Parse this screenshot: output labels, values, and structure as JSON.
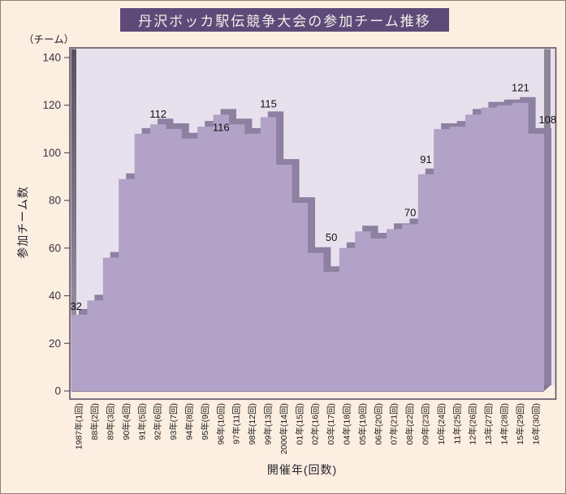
{
  "header": {
    "title": "丹沢ボッカ駅伝競争大会の参加チーム推移"
  },
  "colors": {
    "page_background": "#fceee1",
    "title_background": "#5e4a79",
    "title_text": "#f3efe7",
    "plot_wall": "#e7e1ee",
    "area_front": "#b2a2c7",
    "area_depth": "#8d80a0",
    "side_wall": "#7f7689",
    "frame_border": "#5b5365",
    "axis_text": "#3a3542",
    "label_text": "#111111"
  },
  "chart_data": {
    "type": "area",
    "style": "3d-step-area",
    "title": "丹沢ボッカ駅伝競争大会の参加チーム推移",
    "unit_label": "（チーム）",
    "xlabel": "開催年(回数)",
    "ylabel": "参加チーム数",
    "ylim": [
      0,
      140
    ],
    "y_ticks": [
      0,
      20,
      40,
      60,
      80,
      100,
      120,
      140
    ],
    "grid": false,
    "legend": false,
    "categories": [
      "1987年(1回)",
      "88年(2回)",
      "89年(3回)",
      "90年(4回)",
      "91年(5回)",
      "92年(6回)",
      "93年(7回)",
      "94年(8回)",
      "95年(9回)",
      "96年(10回)",
      "97年(11回)",
      "98年(12回)",
      "99年(13回)",
      "2000年(14回)",
      "01年(15回)",
      "02年(16回)",
      "03年(17回)",
      "04年(18回)",
      "05年(19回)",
      "06年(20回)",
      "07年(21回)",
      "08年(22回)",
      "09年(23回)",
      "10年(24回)",
      "11年(25回)",
      "12年(26回)",
      "13年(27回)",
      "14年(28回)",
      "15年(29回)",
      "16年(30回)"
    ],
    "values": [
      32,
      38,
      56,
      89,
      108,
      112,
      110,
      106,
      111,
      116,
      112,
      108,
      115,
      95,
      79,
      58,
      50,
      60,
      67,
      64,
      68,
      70,
      91,
      110,
      111,
      116,
      119,
      120,
      121,
      108
    ],
    "labeled_points": [
      {
        "index": 0,
        "label": "32"
      },
      {
        "index": 5,
        "label": "112"
      },
      {
        "index": 9,
        "label": "116"
      },
      {
        "index": 12,
        "label": "115"
      },
      {
        "index": 16,
        "label": "50"
      },
      {
        "index": 21,
        "label": "70"
      },
      {
        "index": 22,
        "label": "91"
      },
      {
        "index": 28,
        "label": "121"
      },
      {
        "index": 29,
        "label": "108"
      }
    ]
  }
}
